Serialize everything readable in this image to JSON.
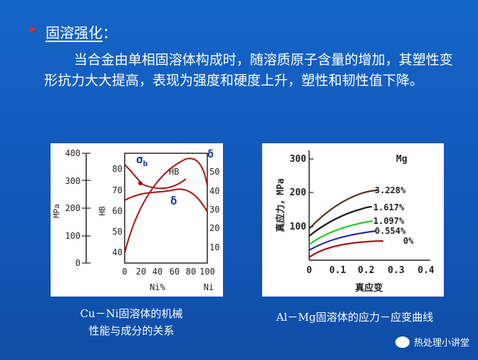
{
  "heading": {
    "title": "固溶强化",
    "colon": "："
  },
  "body_text": "当合金由单相固溶体构成时，随溶质原子含量的增加，其塑性变形抗力大大提高，表现为强度和硬度上升，塑性和韧性值下降。",
  "figure1": {
    "left_axis_ticks": [
      "400",
      "300",
      "200",
      "100",
      "0"
    ],
    "left_axis_unit": "MPa",
    "hb_axis_ticks": [
      "80",
      "70",
      "60",
      "50",
      "40"
    ],
    "hb_axis_label": "HB",
    "right_axis_ticks": [
      "50",
      "40",
      "30",
      "20",
      "10"
    ],
    "x_ticks": [
      "0",
      "20",
      "40",
      "60",
      "80",
      "100"
    ],
    "x_label": "Ni%",
    "x_right_label": "Ni",
    "sigma_label": "σ",
    "sigma_sub": "b",
    "hb_label": "HB",
    "delta_label": "δ",
    "delta_right_label": "δ",
    "caption_line1": "Cu－Ni固溶体的机械",
    "caption_line2": "性能与成分的关系"
  },
  "figure2": {
    "y_ticks": [
      "300",
      "200",
      "100",
      "0"
    ],
    "x_ticks": [
      "0",
      "0.1",
      "0.2",
      "0.3",
      "0.4"
    ],
    "y_label": "真应力，MPa",
    "x_label": "真应变",
    "legend_title": "Mg",
    "curve_labels": [
      "3.228%",
      "1.617%",
      "1.097%",
      "0.554%",
      "0%"
    ],
    "curve_colors": [
      "#5a2a1a",
      "#1a1a1a",
      "#22cc22",
      "#2a2aa0",
      "#b01010"
    ],
    "caption": "Al－Mg固溶体的应力－应变曲线"
  },
  "watermark": "热处理小讲堂"
}
